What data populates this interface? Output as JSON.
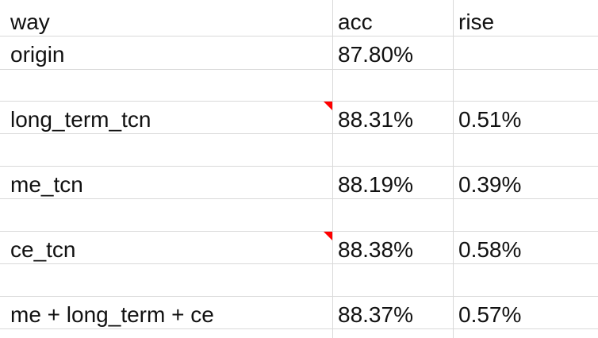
{
  "sheet": {
    "header": {
      "way": "way",
      "acc": "acc",
      "rise": "rise"
    },
    "rows": [
      {
        "way": "origin",
        "acc": "87.80%",
        "rise": ""
      },
      {
        "way": "long_term_tcn",
        "acc": "88.31%",
        "rise": "0.51%",
        "has_comment": true
      },
      {
        "way": "me_tcn",
        "acc": "88.19%",
        "rise": "0.39%"
      },
      {
        "way": "ce_tcn",
        "acc": "88.38%",
        "rise": "0.58%",
        "has_comment": true
      },
      {
        "way": "me + long_term + ce",
        "acc": "88.37%",
        "rise": "0.57%"
      }
    ],
    "colors": {
      "gridline": "#d9d9d9",
      "text": "#111111",
      "comment_marker": "#ff0000"
    }
  }
}
